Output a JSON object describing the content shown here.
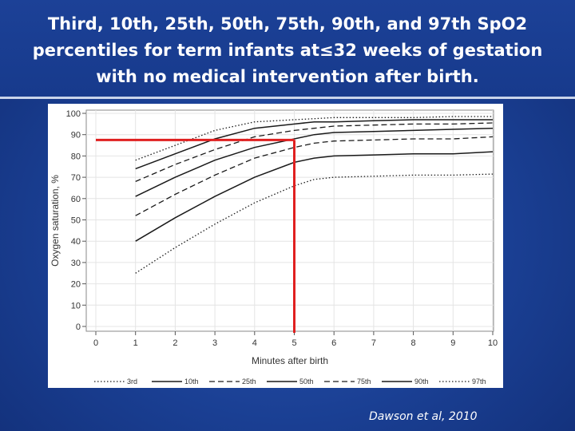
{
  "slide": {
    "title_lines": [
      "Third, 10th, 25th, 50th, 75th, 90th, and 97th SpO2",
      "percentiles for term infants at≤32 weeks of gestation",
      "with no medical intervention after birth."
    ],
    "credit": "Dawson et al, 2010"
  },
  "chart_data": {
    "type": "line",
    "title": "",
    "xlabel": "Minutes after birth",
    "ylabel": "Oxygen saturation, %",
    "xlim": [
      0,
      10
    ],
    "ylim": [
      0,
      100
    ],
    "x_ticks": [
      0,
      1,
      2,
      3,
      4,
      5,
      6,
      7,
      8,
      9,
      10
    ],
    "y_ticks": [
      0,
      10,
      20,
      30,
      40,
      50,
      60,
      70,
      80,
      90,
      100
    ],
    "grid": true,
    "legend_position": "bottom",
    "series": [
      {
        "name": "3rd",
        "style": "dotted",
        "x": [
          1,
          2,
          3,
          4,
          5,
          5.5,
          6,
          7,
          8,
          9,
          10
        ],
        "y": [
          25,
          37,
          48,
          58,
          66,
          69,
          70,
          70.5,
          71,
          71,
          71.5
        ]
      },
      {
        "name": "10th",
        "style": "solid",
        "x": [
          1,
          2,
          3,
          4,
          5,
          5.5,
          6,
          7,
          8,
          9,
          10
        ],
        "y": [
          40,
          51,
          61,
          70,
          77,
          79,
          80,
          80.5,
          81,
          81,
          82
        ]
      },
      {
        "name": "25th",
        "style": "dashed",
        "x": [
          1,
          2,
          3,
          4,
          5,
          5.5,
          6,
          7,
          8,
          9,
          10
        ],
        "y": [
          52,
          62,
          71,
          79,
          84,
          86,
          87,
          87.5,
          88,
          88,
          89
        ]
      },
      {
        "name": "50th",
        "style": "solid",
        "x": [
          1,
          2,
          3,
          4,
          5,
          5.5,
          6,
          7,
          8,
          9,
          10
        ],
        "y": [
          61,
          70,
          78,
          84,
          88,
          90,
          91,
          91.5,
          92,
          92.5,
          93
        ]
      },
      {
        "name": "75th",
        "style": "dashed",
        "x": [
          1,
          2,
          3,
          4,
          5,
          5.5,
          6,
          7,
          8,
          9,
          10
        ],
        "y": [
          68,
          76,
          83,
          89,
          92,
          93,
          94,
          94.5,
          95,
          95,
          95.5
        ]
      },
      {
        "name": "90th",
        "style": "solid",
        "x": [
          1,
          2,
          3,
          4,
          5,
          5.5,
          6,
          7,
          8,
          9,
          10
        ],
        "y": [
          74,
          81,
          88,
          93,
          95,
          96,
          96,
          96.5,
          97,
          97,
          97
        ]
      },
      {
        "name": "97th",
        "style": "dotted",
        "x": [
          1,
          2,
          3,
          4,
          5,
          5.5,
          6,
          7,
          8,
          9,
          10
        ],
        "y": [
          78,
          85,
          92,
          96,
          97,
          97.5,
          98,
          98,
          98,
          98.5,
          98.5
        ]
      }
    ],
    "annotations": [
      {
        "type": "horizontal-marker",
        "color": "#e02020",
        "y": 87.5,
        "x_from": 0,
        "x_to": 5
      },
      {
        "type": "vertical-marker",
        "color": "#e02020",
        "x": 5,
        "y_from": -3,
        "y_to": 87.5
      }
    ]
  }
}
